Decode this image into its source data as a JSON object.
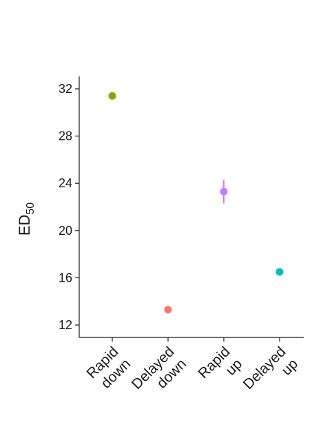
{
  "chart_data": {
    "type": "scatter",
    "title": "",
    "xlabel": "",
    "ylabel": "ED",
    "ylabel_subscript": "50",
    "ylim": [
      11,
      33
    ],
    "yticks": [
      12,
      16,
      20,
      24,
      28,
      32
    ],
    "categories": [
      [
        "Rapid",
        "down"
      ],
      [
        "Delayed",
        "down"
      ],
      [
        "Rapid",
        "up"
      ],
      [
        "Delayed",
        "up"
      ]
    ],
    "points": [
      {
        "y": 31.4,
        "err": null,
        "color": "#7cae00"
      },
      {
        "y": 13.3,
        "err": null,
        "color": "#f8766d"
      },
      {
        "y": 23.3,
        "err": [
          22.3,
          24.3
        ],
        "color": "#c77cff"
      },
      {
        "y": 16.5,
        "err": null,
        "color": "#00bfc4"
      }
    ],
    "grid": false,
    "legend": "none"
  }
}
